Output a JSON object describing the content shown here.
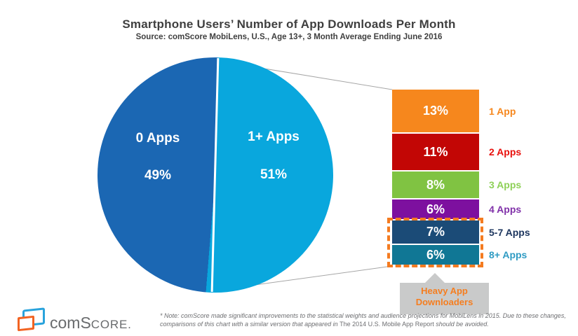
{
  "chart_data": {
    "type": "pie",
    "title": "Smartphone Users’ Number of App Downloads Per Month",
    "source": "Source: comScore MobiLens, U.S., Age 13+, 3 Month Average Ending June 2016",
    "pie": {
      "slices": [
        {
          "label": "0 Apps",
          "value_pct": 49,
          "value_label": "49%",
          "color": "#1b67b3"
        },
        {
          "label": "1+ Apps",
          "value_pct": 51,
          "value_label": "51%",
          "color": "#09a7dd"
        }
      ]
    },
    "breakdown": {
      "description": "1+ Apps slice expanded into number of apps downloaded",
      "bars": [
        {
          "label": "1 App",
          "value_pct": 13,
          "value_label": "13%",
          "bar_color": "#f6871d",
          "label_color": "#f6871d"
        },
        {
          "label": "2 Apps",
          "value_pct": 11,
          "value_label": "11%",
          "bar_color": "#c20605",
          "label_color": "#e8100c"
        },
        {
          "label": "3 Apps",
          "value_pct": 8,
          "value_label": "8%",
          "bar_color": "#80c342",
          "label_color": "#8ed058"
        },
        {
          "label": "4 Apps",
          "value_pct": 6,
          "value_label": "6%",
          "bar_color": "#7d109f",
          "label_color": "#8031a9"
        },
        {
          "label": "5-7 Apps",
          "value_pct": 7,
          "value_label": "7%",
          "bar_color": "#1b4b77",
          "label_color": "#1c355e"
        },
        {
          "label": "8+ Apps",
          "value_pct": 6,
          "value_label": "6%",
          "bar_color": "#107795",
          "label_color": "#2f9bc3"
        }
      ],
      "highlight": {
        "label_line1": "Heavy App",
        "label_line2": "Downloaders",
        "includes": [
          "5-7 Apps",
          "8+ Apps"
        ],
        "border_color": "#f47b20",
        "text_color": "#f57e20",
        "box_color": "#c9caca"
      },
      "connector_color": "#a6a6a6"
    }
  },
  "footer": {
    "note_line1": "* Note: comScore made significant improvements to the statistical weights and audience projections for MobiLens in 2015. Due to these changes,",
    "note_line2_pre": "comparisons of this chart with a similar version that appeared in ",
    "note_line2_title": "The 2014 U.S. Mobile App Report",
    "note_line2_post": " should be avoided.",
    "logo": {
      "com": "com",
      "s": "S",
      "core": "CORE",
      "period": "."
    }
  }
}
